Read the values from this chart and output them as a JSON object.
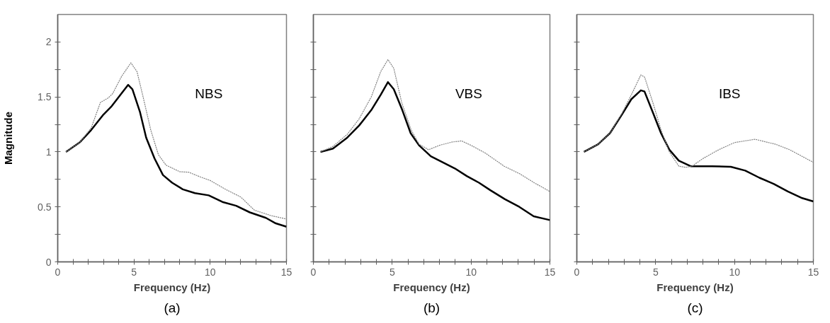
{
  "chart_data": [
    {
      "type": "line",
      "xlabel": "Frequency (Hz)",
      "ylabel": "Magnitude",
      "annotations": [
        "NBS",
        "(a)"
      ],
      "xlim": [
        0,
        15
      ],
      "ylim": [
        0,
        2.25
      ],
      "xticks": [
        0,
        {
          "value": 1,
          "label": null
        },
        {
          "value": 2,
          "label": null
        },
        {
          "value": 3,
          "label": null
        },
        {
          "value": 4,
          "label": null
        },
        5,
        {
          "value": 6,
          "label": null
        },
        {
          "value": 7,
          "label": null
        },
        {
          "value": 8,
          "label": null
        },
        {
          "value": 9,
          "label": null
        },
        10,
        {
          "value": 11,
          "label": null
        },
        {
          "value": 12,
          "label": null
        },
        {
          "value": 13,
          "label": null
        },
        {
          "value": 14,
          "label": null
        },
        15
      ],
      "yticks": [
        0,
        {
          "value": 0.25,
          "label": null
        },
        0.5,
        {
          "value": 0.75,
          "label": null
        },
        1,
        {
          "value": 1.25,
          "label": null
        },
        1.5,
        {
          "value": 1.75,
          "label": null
        },
        2
      ],
      "series": [
        {
          "color": "#000000",
          "line_style": "solid",
          "x": [
            0.54,
            1.47,
            2.2,
            3.0,
            3.5,
            4.17,
            4.62,
            4.9,
            5.4,
            5.8,
            6.35,
            6.9,
            7.5,
            8.2,
            9.0,
            9.9,
            10.8,
            11.7,
            12.6,
            13.65,
            14.3,
            15
          ],
          "values": [
            1.0,
            1.09,
            1.2,
            1.34,
            1.41,
            1.53,
            1.61,
            1.57,
            1.36,
            1.13,
            0.94,
            0.79,
            0.72,
            0.66,
            0.625,
            0.605,
            0.545,
            0.51,
            0.45,
            0.4,
            0.35,
            0.32
          ]
        },
        {
          "color": "#808080",
          "line_style": "dashed",
          "x": [
            0.54,
            1.47,
            2.2,
            2.8,
            3.3,
            3.6,
            4.2,
            4.8,
            5.2,
            5.6,
            6.1,
            6.6,
            7.1,
            8.0,
            8.6,
            9.4,
            10.0,
            11.0,
            12.0,
            12.9,
            14.0,
            15
          ],
          "values": [
            1.0,
            1.09,
            1.22,
            1.45,
            1.49,
            1.53,
            1.69,
            1.81,
            1.73,
            1.5,
            1.2,
            0.975,
            0.88,
            0.82,
            0.815,
            0.77,
            0.74,
            0.66,
            0.59,
            0.47,
            0.42,
            0.39
          ]
        }
      ]
    },
    {
      "type": "line",
      "xlabel": "Frequency (Hz)",
      "annotations": [
        "VBS",
        "(b)"
      ],
      "xlim": [
        0,
        15
      ],
      "ylim": [
        0,
        2.25
      ],
      "tick_labels": "x",
      "xticks": [
        0,
        {
          "value": 1,
          "label": null
        },
        {
          "value": 2,
          "label": null
        },
        {
          "value": 3,
          "label": null
        },
        {
          "value": 4,
          "label": null
        },
        5,
        {
          "value": 6,
          "label": null
        },
        {
          "value": 7,
          "label": null
        },
        {
          "value": 8,
          "label": null
        },
        {
          "value": 9,
          "label": null
        },
        10,
        {
          "value": 11,
          "label": null
        },
        {
          "value": 12,
          "label": null
        },
        {
          "value": 13,
          "label": null
        },
        {
          "value": 14,
          "label": null
        },
        15
      ],
      "yticks": [
        0,
        {
          "value": 0.25,
          "label": null
        },
        0.5,
        {
          "value": 0.75,
          "label": null
        },
        1,
        {
          "value": 1.25,
          "label": null
        },
        1.5,
        {
          "value": 1.75,
          "label": null
        },
        2
      ],
      "series": [
        {
          "color": "#000000",
          "line_style": "solid",
          "x": [
            0.45,
            1.24,
            2.15,
            2.9,
            3.67,
            4.27,
            4.73,
            5.1,
            5.64,
            6.17,
            6.7,
            7.45,
            8.2,
            8.97,
            9.73,
            10.5,
            11.24,
            12.15,
            13.06,
            13.97,
            15
          ],
          "values": [
            1.0,
            1.03,
            1.13,
            1.24,
            1.38,
            1.52,
            1.635,
            1.57,
            1.38,
            1.17,
            1.06,
            0.96,
            0.905,
            0.85,
            0.78,
            0.72,
            0.65,
            0.57,
            0.5,
            0.415,
            0.38
          ]
        },
        {
          "color": "#808080",
          "line_style": "dashed",
          "x": [
            0.45,
            1.24,
            2.15,
            2.9,
            3.67,
            4.27,
            4.73,
            5.1,
            5.6,
            6.2,
            6.7,
            7.3,
            8.0,
            8.8,
            9.4,
            10.0,
            10.9,
            12.1,
            13.1,
            14.0,
            15
          ],
          "values": [
            1.0,
            1.05,
            1.16,
            1.3,
            1.5,
            1.73,
            1.84,
            1.76,
            1.45,
            1.2,
            1.07,
            1.02,
            1.06,
            1.09,
            1.1,
            1.06,
            0.99,
            0.87,
            0.8,
            0.72,
            0.64
          ]
        }
      ]
    },
    {
      "type": "line",
      "xlabel": "Frequency (Hz)",
      "annotations": [
        "IBS",
        "(c)"
      ],
      "xlim": [
        0,
        15
      ],
      "ylim": [
        0,
        2.25
      ],
      "tick_labels": "x",
      "xticks": [
        0,
        {
          "value": 1,
          "label": null
        },
        {
          "value": 2,
          "label": null
        },
        {
          "value": 3,
          "label": null
        },
        {
          "value": 4,
          "label": null
        },
        5,
        {
          "value": 6,
          "label": null
        },
        {
          "value": 7,
          "label": null
        },
        {
          "value": 8,
          "label": null
        },
        {
          "value": 9,
          "label": null
        },
        10,
        {
          "value": 11,
          "label": null
        },
        {
          "value": 12,
          "label": null
        },
        {
          "value": 13,
          "label": null
        },
        {
          "value": 14,
          "label": null
        },
        15
      ],
      "yticks": [
        0,
        {
          "value": 0.25,
          "label": null
        },
        0.5,
        {
          "value": 0.75,
          "label": null
        },
        1,
        {
          "value": 1.25,
          "label": null
        },
        1.5,
        {
          "value": 1.75,
          "label": null
        },
        2
      ],
      "series": [
        {
          "color": "#000000",
          "line_style": "solid",
          "x": [
            0.45,
            1.35,
            2.1,
            2.86,
            3.46,
            4.06,
            4.29,
            4.82,
            5.34,
            5.87,
            6.47,
            7.22,
            8.57,
            9.77,
            10.68,
            11.58,
            12.48,
            13.38,
            14.29,
            15
          ],
          "values": [
            1.0,
            1.07,
            1.17,
            1.34,
            1.48,
            1.56,
            1.55,
            1.36,
            1.17,
            1.02,
            0.92,
            0.87,
            0.87,
            0.865,
            0.83,
            0.765,
            0.71,
            0.64,
            0.58,
            0.55
          ]
        },
        {
          "color": "#808080",
          "line_style": "dashed",
          "x": [
            0.45,
            1.35,
            2.1,
            2.86,
            3.46,
            4.06,
            4.3,
            4.82,
            5.34,
            5.87,
            6.47,
            6.9,
            7.3,
            8.0,
            9.0,
            10.0,
            11.3,
            12.6,
            13.5,
            15
          ],
          "values": [
            1.0,
            1.07,
            1.17,
            1.35,
            1.52,
            1.7,
            1.68,
            1.45,
            1.2,
            1.0,
            0.87,
            0.86,
            0.87,
            0.94,
            1.02,
            1.085,
            1.115,
            1.07,
            1.02,
            0.905
          ]
        }
      ]
    }
  ]
}
